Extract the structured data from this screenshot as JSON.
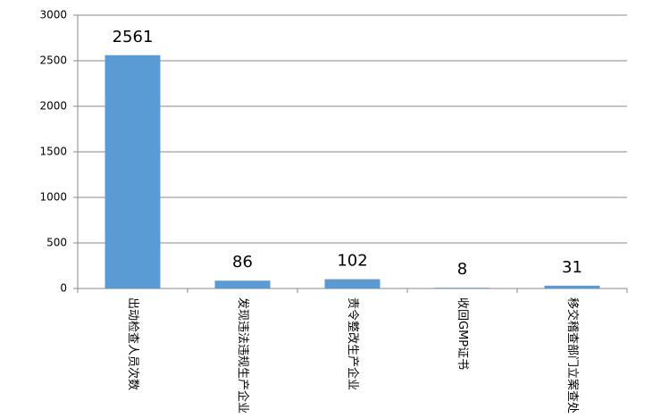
{
  "chart_data": {
    "type": "bar",
    "categories": [
      "出动检查人员次数",
      "发现违法违规生产企业",
      "责令整改生产企业",
      "收回GMP证书",
      "移交稽查部门立案查处"
    ],
    "values": [
      2561,
      86,
      102,
      8,
      31
    ],
    "color": "#5b9bd5",
    "ylim": [
      0,
      3000
    ],
    "yticks": [
      0,
      500,
      1000,
      1500,
      2000,
      2500,
      3000
    ],
    "grid": true
  }
}
